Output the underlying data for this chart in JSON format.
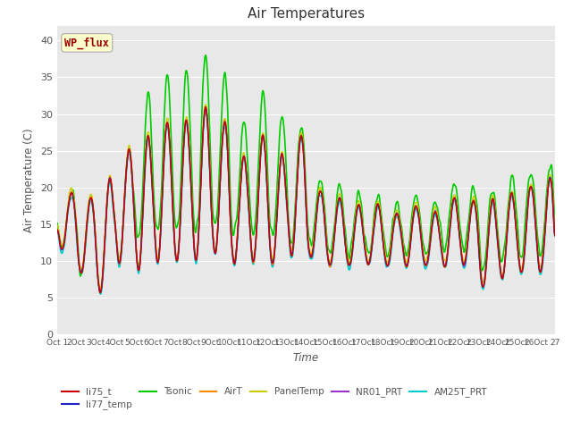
{
  "title": "Air Temperatures",
  "xlabel": "Time",
  "ylabel": "Air Temperature (C)",
  "ylim": [
    0,
    42
  ],
  "yticks": [
    0,
    5,
    10,
    15,
    20,
    25,
    30,
    35,
    40
  ],
  "xtick_labels": [
    "Oct 1",
    "2Oct",
    "3Oct",
    "4Oct",
    "5Oct",
    "6Oct",
    "7Oct",
    "8Oct",
    "9Oct",
    "10Oct",
    "11Oct",
    "12Oct",
    "13Oct",
    "14Oct",
    "15Oct",
    "16Oct",
    "17Oct",
    "18Oct",
    "19Oct",
    "20Oct",
    "21Oct",
    "22Oct",
    "23Oct",
    "24Oct",
    "25Oct",
    "26Oct",
    "27"
  ],
  "annotation_text": "WP_flux",
  "annotation_bg": "#ffffcc",
  "annotation_fg": "#990000",
  "plot_bg_color": "#e8e8e8",
  "fig_bg_color": "#ffffff",
  "series_colors": {
    "li75_t": "#cc0000",
    "li77_temp": "#2222cc",
    "Tsonic": "#00cc00",
    "AirT": "#ff8800",
    "PanelTemp": "#cccc00",
    "NR01_PRT": "#9933cc",
    "AM25T_PRT": "#00cccc"
  },
  "legend_order": [
    "li75_t",
    "li77_temp",
    "Tsonic",
    "AirT",
    "PanelTemp",
    "NR01_PRT",
    "AM25T_PRT"
  ]
}
